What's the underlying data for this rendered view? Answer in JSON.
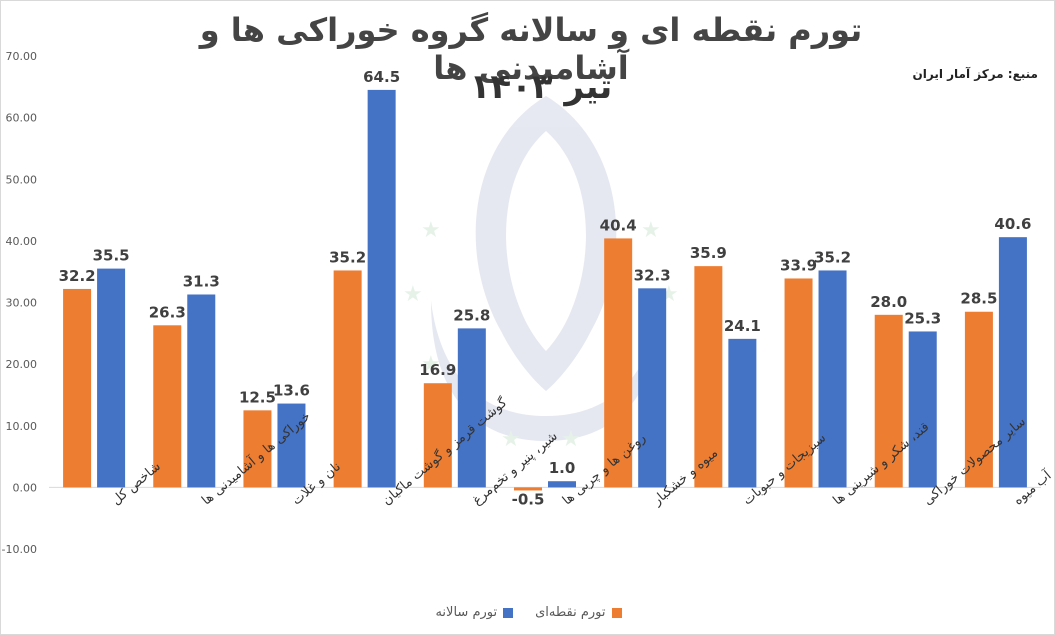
{
  "chart_data": {
    "type": "bar",
    "title": "تورم نقطه ای و سالانه گروه خوراکی ها و آشامیدنی ها",
    "subtitle": "تیر ۱۴۰۳",
    "source": "منبع: مرکز آمار ایران",
    "ylim": [
      -10,
      70
    ],
    "yticks": [
      "-10.00",
      "0.00",
      "10.00",
      "20.00",
      "30.00",
      "40.00",
      "50.00",
      "60.00",
      "70.00"
    ],
    "grid": false,
    "legend_position": "bottom",
    "categories": [
      "شاخص کل",
      "خوراکی ها و آشامیدنی ها",
      "نان و غلات",
      "گوشت قرمز و گوشت ماکیان",
      "شیر، پنیر و تخم‌مرغ",
      "روغن ها و چربی ها",
      "میوه و خشکبار",
      "سبزیجات و حبوبات",
      "قند، شکر و شیرینی ها",
      "سایر محصولات خوراکی",
      "چای، قهوه، کاکائو، نوشابه و آب میوه"
    ],
    "series": [
      {
        "name": "تورم نقطه‌ای",
        "color": "#ED7D31",
        "values": [
          32.2,
          26.3,
          12.5,
          35.2,
          16.9,
          -0.5,
          40.4,
          35.9,
          33.9,
          28.0,
          28.5
        ],
        "labels": [
          "32.2",
          "26.3",
          "12.5",
          "35.2",
          "16.9",
          "-0.5",
          "40.4",
          "35.9",
          "33.9",
          "28.0",
          "28.5"
        ]
      },
      {
        "name": "تورم سالانه",
        "color": "#4472C4",
        "values": [
          35.5,
          31.3,
          13.6,
          64.5,
          25.8,
          1.0,
          32.3,
          24.1,
          35.2,
          25.3,
          40.6
        ],
        "labels": [
          "35.5",
          "31.3",
          "13.6",
          "64.5",
          "25.8",
          "1.0",
          "32.3",
          "24.1",
          "35.2",
          "25.3",
          "40.6"
        ]
      }
    ]
  }
}
